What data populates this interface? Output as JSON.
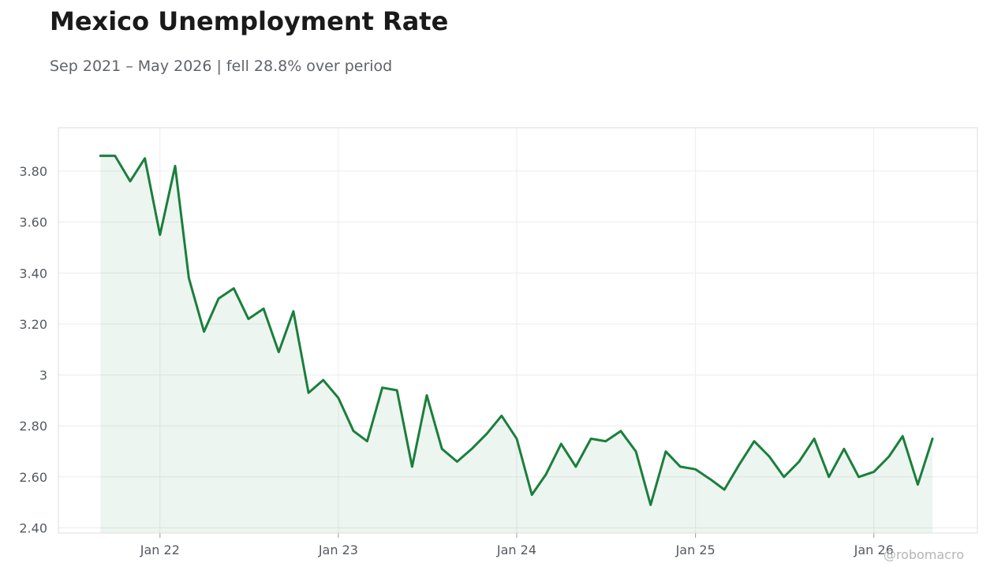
{
  "chart_data": {
    "type": "line",
    "title": "Mexico Unemployment Rate",
    "subtitle": "Sep 2021 – May 2026 | fell 28.8% over period",
    "xlabel": "",
    "ylabel": "",
    "x_ticks": [
      {
        "label": "Jan 22",
        "date": "2022-01-01"
      },
      {
        "label": "Jan 23",
        "date": "2023-01-01"
      },
      {
        "label": "Jan 24",
        "date": "2024-01-01"
      },
      {
        "label": "Jan 25",
        "date": "2025-01-01"
      },
      {
        "label": "Jan 26",
        "date": "2026-01-01"
      }
    ],
    "y_ticks": [
      {
        "label": "2.40",
        "value": 2.4
      },
      {
        "label": "2.60",
        "value": 2.6
      },
      {
        "label": "2.80",
        "value": 2.8
      },
      {
        "label": "3",
        "value": 3.0
      },
      {
        "label": "3.20",
        "value": 3.2
      },
      {
        "label": "3.40",
        "value": 3.4
      },
      {
        "label": "3.60",
        "value": 3.6
      },
      {
        "label": "3.80",
        "value": 3.8
      }
    ],
    "xlim": [
      "2021-06-07",
      "2026-08-01"
    ],
    "ylim": [
      2.38,
      3.97
    ],
    "grid": true,
    "line_color": "#1a7f3c",
    "fill_color": "#1a7f3c",
    "series": [
      {
        "x": [
          "2021-09-01",
          "2021-10-01",
          "2021-11-01",
          "2021-12-01",
          "2022-01-01",
          "2022-02-01",
          "2022-03-01",
          "2022-04-01",
          "2022-05-01",
          "2022-06-01",
          "2022-07-01",
          "2022-08-01",
          "2022-09-01",
          "2022-10-01",
          "2022-11-01",
          "2022-12-01",
          "2023-01-01",
          "2023-02-01",
          "2023-03-01",
          "2023-04-01",
          "2023-05-01",
          "2023-06-01",
          "2023-07-01",
          "2023-08-01",
          "2023-09-01",
          "2023-10-01",
          "2023-11-01",
          "2023-12-01",
          "2024-01-01",
          "2024-02-01",
          "2024-03-01",
          "2024-04-01",
          "2024-05-01",
          "2024-06-01",
          "2024-07-01",
          "2024-08-01",
          "2024-09-01",
          "2024-10-01",
          "2024-11-01",
          "2024-12-01",
          "2025-01-01",
          "2025-02-01",
          "2025-03-01",
          "2025-04-01",
          "2025-05-01",
          "2025-06-01",
          "2025-07-01",
          "2025-08-01",
          "2025-09-01",
          "2025-10-01",
          "2025-11-01",
          "2025-12-01",
          "2026-01-01",
          "2026-02-01",
          "2026-03-01",
          "2026-04-01",
          "2026-05-01"
        ],
        "values": [
          3.86,
          3.86,
          3.76,
          3.85,
          3.55,
          3.82,
          3.38,
          3.17,
          3.3,
          3.34,
          3.22,
          3.26,
          3.09,
          3.25,
          2.93,
          2.98,
          2.91,
          2.78,
          2.74,
          2.95,
          2.94,
          2.64,
          2.92,
          2.71,
          2.66,
          2.71,
          2.77,
          2.84,
          2.75,
          2.53,
          2.61,
          2.73,
          2.64,
          2.75,
          2.74,
          2.78,
          2.7,
          2.49,
          2.7,
          2.64,
          2.63,
          2.59,
          2.55,
          2.65,
          2.74,
          2.68,
          2.6,
          2.66,
          2.75,
          2.6,
          2.71,
          2.6,
          2.62,
          2.68,
          2.76,
          2.57,
          2.75
        ]
      }
    ]
  },
  "watermark": "@robomacro"
}
